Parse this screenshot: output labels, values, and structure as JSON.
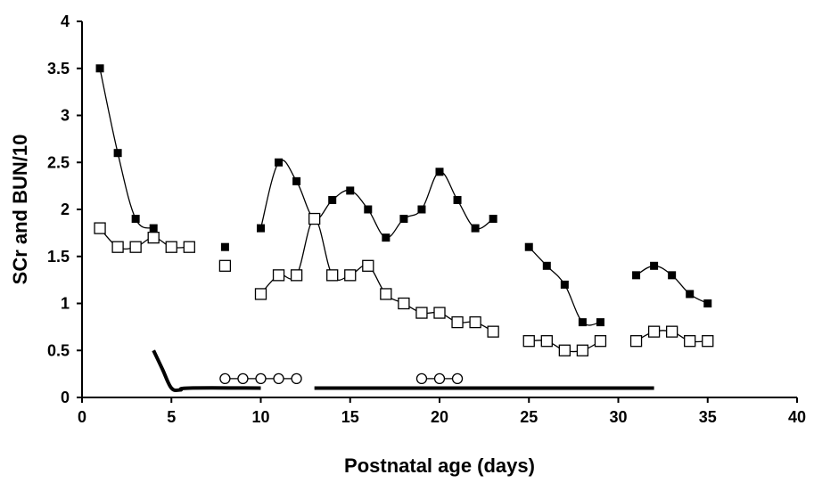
{
  "chart_data": {
    "type": "line",
    "title": "",
    "xlabel": "Postnatal age (days)",
    "ylabel": "SCr and BUN/10",
    "xlim": [
      0,
      40
    ],
    "ylim": [
      0,
      4
    ],
    "xticks": [
      "0",
      "5",
      "10",
      "15",
      "20",
      "25",
      "30",
      "35",
      "40"
    ],
    "yticks": [
      "0",
      "0.5",
      "1",
      "1.5",
      "2",
      "2.5",
      "3",
      "3.5",
      "4"
    ],
    "grid": false,
    "legend": "none",
    "series": [
      {
        "marker": "filled-square",
        "color": "#000000",
        "segments": [
          [
            [
              1,
              3.5
            ],
            [
              2,
              2.6
            ],
            [
              3,
              1.9
            ],
            [
              4,
              1.8
            ]
          ],
          [
            [
              8,
              1.6
            ]
          ],
          [
            [
              10,
              1.8
            ],
            [
              11,
              2.5
            ],
            [
              12,
              2.3
            ],
            [
              13,
              1.9
            ],
            [
              14,
              2.1
            ],
            [
              15,
              2.2
            ],
            [
              16,
              2.0
            ],
            [
              17,
              1.7
            ],
            [
              18,
              1.9
            ],
            [
              19,
              2.0
            ],
            [
              20,
              2.4
            ],
            [
              21,
              2.1
            ],
            [
              22,
              1.8
            ],
            [
              23,
              1.9
            ]
          ],
          [
            [
              25,
              1.6
            ],
            [
              26,
              1.4
            ],
            [
              27,
              1.2
            ],
            [
              28,
              0.8
            ],
            [
              29,
              0.8
            ]
          ],
          [
            [
              31,
              1.3
            ],
            [
              32,
              1.4
            ],
            [
              33,
              1.3
            ],
            [
              34,
              1.1
            ],
            [
              35,
              1.0
            ]
          ]
        ]
      },
      {
        "marker": "open-square",
        "color": "#000000",
        "segments": [
          [
            [
              1,
              1.8
            ],
            [
              2,
              1.6
            ],
            [
              3,
              1.6
            ],
            [
              4,
              1.7
            ],
            [
              5,
              1.6
            ],
            [
              6,
              1.6
            ]
          ],
          [
            [
              8,
              1.4
            ]
          ],
          [
            [
              10,
              1.1
            ],
            [
              11,
              1.3
            ],
            [
              12,
              1.3
            ],
            [
              13,
              1.9
            ],
            [
              14,
              1.3
            ],
            [
              15,
              1.3
            ],
            [
              16,
              1.4
            ],
            [
              17,
              1.1
            ],
            [
              18,
              1.0
            ],
            [
              19,
              0.9
            ],
            [
              20,
              0.9
            ],
            [
              21,
              0.8
            ],
            [
              22,
              0.8
            ],
            [
              23,
              0.7
            ]
          ],
          [
            [
              25,
              0.6
            ],
            [
              26,
              0.6
            ],
            [
              27,
              0.5
            ],
            [
              28,
              0.5
            ],
            [
              29,
              0.6
            ]
          ],
          [
            [
              31,
              0.6
            ],
            [
              32,
              0.7
            ],
            [
              33,
              0.7
            ],
            [
              34,
              0.6
            ],
            [
              35,
              0.6
            ]
          ]
        ]
      },
      {
        "marker": "open-circle",
        "color": "#000000",
        "segments": [
          [
            [
              8,
              0.2
            ],
            [
              9,
              0.2
            ],
            [
              10,
              0.2
            ],
            [
              11,
              0.2
            ],
            [
              12,
              0.2
            ]
          ],
          [
            [
              19,
              0.2
            ],
            [
              20,
              0.2
            ],
            [
              21,
              0.2
            ]
          ]
        ]
      },
      {
        "marker": "none",
        "color": "#000000",
        "style": "thick-line",
        "segments": [
          [
            [
              4,
              0.5
            ],
            [
              4.5,
              0.3
            ],
            [
              5,
              0.1
            ],
            [
              5.5,
              0.08
            ],
            [
              6,
              0.1
            ],
            [
              10,
              0.1
            ]
          ],
          [
            [
              13,
              0.1
            ],
            [
              32,
              0.1
            ]
          ]
        ]
      }
    ]
  }
}
